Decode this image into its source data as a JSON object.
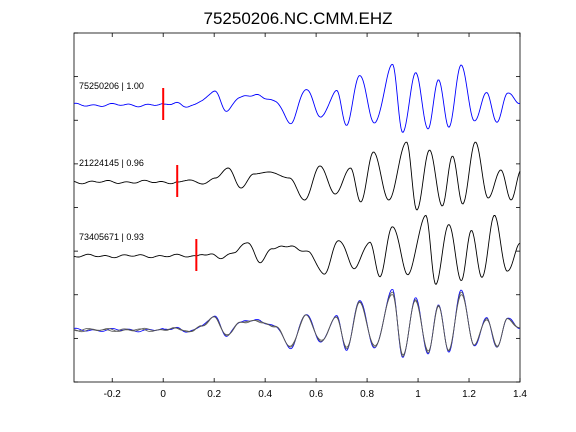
{
  "chart_data": {
    "type": "line",
    "title": "75250206.NC.CMM.EHZ",
    "xlim": [
      -0.35,
      1.4
    ],
    "xticks": [
      -0.2,
      0,
      0.2,
      0.4,
      0.6,
      0.8,
      1,
      1.2,
      1.4
    ],
    "xtick_labels": [
      "-0.2",
      "0",
      "0.2",
      "0.4",
      "0.6",
      "0.8",
      "1",
      "1.2",
      "1.4"
    ],
    "y_ticks_count": 9,
    "grid": false,
    "colors": {
      "reference": "#0000ff",
      "other": "#000000",
      "pick": "#ff0000",
      "overlay_other": "#555555"
    },
    "traces": [
      {
        "id": "75250206",
        "label": "75250206 | 1.00",
        "pick_time": 0.0,
        "color": "#0000ff"
      },
      {
        "id": "21224145",
        "label": "21224145 | 0.96",
        "pick_time": 0.055,
        "color": "#000000"
      },
      {
        "id": "73405671",
        "label": "73405671 | 0.93",
        "pick_time": 0.13,
        "color": "#000000"
      }
    ],
    "waveform_features": [
      [
        0.0,
        0
      ],
      [
        0.05,
        0.05
      ],
      [
        0.1,
        -0.05
      ],
      [
        0.15,
        0.1
      ],
      [
        0.2,
        0.35
      ],
      [
        0.25,
        -0.15
      ],
      [
        0.3,
        0.2
      ],
      [
        0.36,
        0.25
      ],
      [
        0.44,
        0.1
      ],
      [
        0.5,
        -0.45
      ],
      [
        0.56,
        0.4
      ],
      [
        0.62,
        -0.3
      ],
      [
        0.68,
        0.35
      ],
      [
        0.72,
        -0.5
      ],
      [
        0.77,
        0.75
      ],
      [
        0.83,
        -0.45
      ],
      [
        0.9,
        1.0
      ],
      [
        0.94,
        -0.7
      ],
      [
        0.99,
        0.8
      ],
      [
        1.04,
        -0.6
      ],
      [
        1.08,
        0.65
      ],
      [
        1.12,
        -0.55
      ],
      [
        1.17,
        1.0
      ],
      [
        1.22,
        -0.4
      ],
      [
        1.27,
        0.3
      ],
      [
        1.31,
        -0.45
      ],
      [
        1.35,
        0.3
      ],
      [
        1.4,
        0.05
      ]
    ]
  }
}
